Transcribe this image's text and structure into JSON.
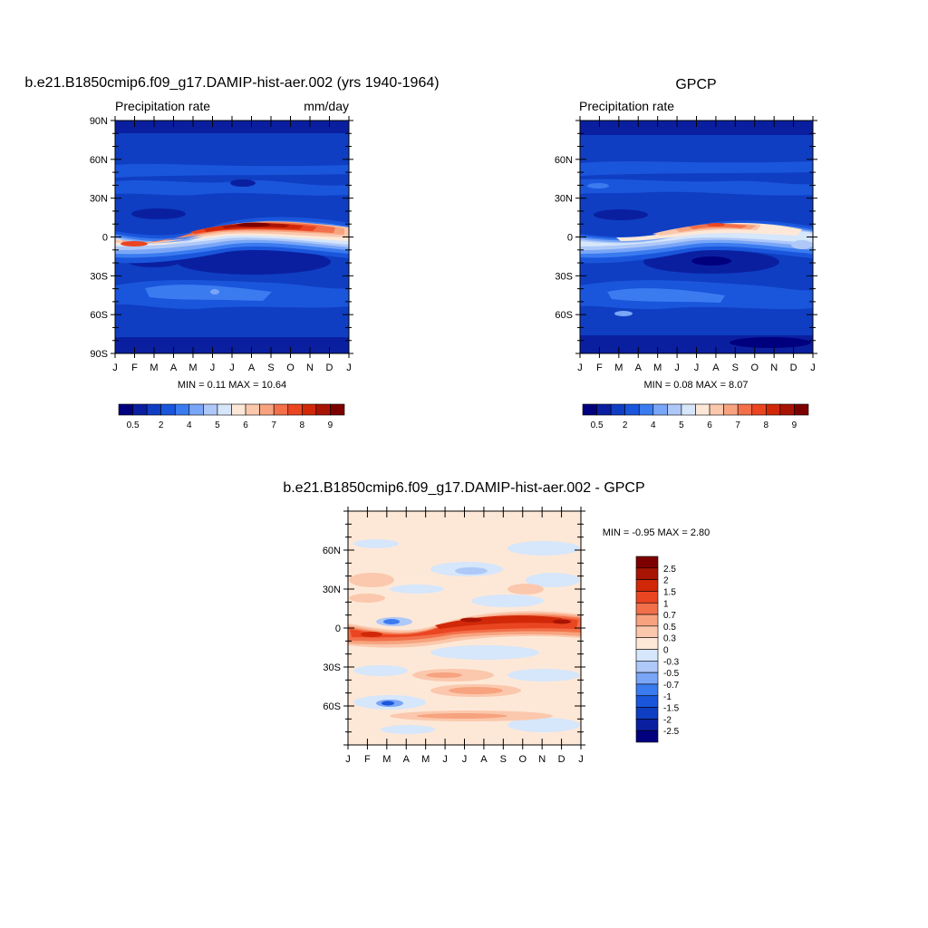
{
  "colormaps": {
    "precip": [
      "#00007f",
      "#0a1fa0",
      "#0f3ec2",
      "#1a56dc",
      "#3b7bf0",
      "#7aa6f7",
      "#aec8f8",
      "#d6e6fb",
      "#fde8d7",
      "#fbc8ad",
      "#f7a37f",
      "#f2704a",
      "#ea4521",
      "#d02808",
      "#a81404",
      "#7d0000"
    ],
    "diff": [
      "#00007f",
      "#0a1fa0",
      "#0f3ec2",
      "#1a56dc",
      "#3b7bf0",
      "#7aa6f7",
      "#aec8f8",
      "#d6e6fb",
      "#fde8d7",
      "#fbc8ad",
      "#f7a37f",
      "#f2704a",
      "#ea4521",
      "#d02808",
      "#a81404",
      "#7d0000"
    ]
  },
  "panels": [
    {
      "id": "model",
      "title": "b.e21.B1850cmip6.f09_g17.DAMIP-hist-aer.002 (yrs 1940-1964)",
      "left_label": "Precipitation rate",
      "right_label": "mm/day",
      "stats": "MIN =   0.11 MAX =  10.64",
      "months": [
        "J",
        "F",
        "M",
        "A",
        "M",
        "J",
        "J",
        "A",
        "S",
        "O",
        "N",
        "D",
        "J"
      ],
      "lat_labels": [
        "90N",
        "60N",
        "30N",
        "0",
        "30S",
        "60S",
        "90S"
      ],
      "colorbar_labels": [
        "0.5",
        "2",
        "4",
        "5",
        "6",
        "7",
        "8",
        "9"
      ],
      "chart_data": {
        "type": "heatmap",
        "xlabel": "",
        "ylabel": "",
        "x_range": [
          "Jan",
          "Jan"
        ],
        "y_range": [
          -90,
          90
        ],
        "min": 0.11,
        "max": 10.64,
        "units": "mm/day",
        "description_levels": [
          0.5,
          1,
          2,
          3,
          4,
          4.5,
          5,
          5.5,
          6,
          6.5,
          7,
          7.5,
          8,
          8.5,
          9
        ]
      }
    },
    {
      "id": "obs",
      "title": "GPCP",
      "left_label": "Precipitation rate",
      "right_label": "",
      "stats": "MIN =   0.08 MAX =   8.07",
      "months": [
        "J",
        "F",
        "M",
        "A",
        "M",
        "J",
        "J",
        "A",
        "S",
        "O",
        "N",
        "D",
        "J"
      ],
      "lat_labels": [
        "60N",
        "30N",
        "0",
        "30S",
        "60S"
      ],
      "colorbar_labels": [
        "0.5",
        "2",
        "4",
        "5",
        "6",
        "7",
        "8",
        "9"
      ],
      "chart_data": {
        "type": "heatmap",
        "xlabel": "",
        "ylabel": "",
        "y_range": [
          -90,
          90
        ],
        "min": 0.08,
        "max": 8.07
      }
    },
    {
      "id": "diff",
      "title": "b.e21.B1850cmip6.f09_g17.DAMIP-hist-aer.002 - GPCP",
      "stats": "MIN =  -0.95 MAX =   2.80",
      "months": [
        "J",
        "F",
        "M",
        "A",
        "M",
        "J",
        "J",
        "A",
        "S",
        "O",
        "N",
        "D",
        "J"
      ],
      "lat_labels": [
        "60N",
        "30N",
        "0",
        "30S",
        "60S"
      ],
      "colorbar_labels": [
        "2.5",
        "2",
        "1.5",
        "1",
        "0.7",
        "0.5",
        "0.3",
        "0",
        "-0.3",
        "-0.5",
        "-0.7",
        "-1",
        "-1.5",
        "-2",
        "-2.5"
      ],
      "chart_data": {
        "type": "heatmap",
        "y_range": [
          -90,
          90
        ],
        "min": -0.95,
        "max": 2.8,
        "levels": [
          -2.5,
          -2,
          -1.5,
          -1,
          -0.7,
          -0.5,
          -0.3,
          0,
          0.3,
          0.5,
          0.7,
          1,
          1.5,
          2,
          2.5
        ]
      }
    }
  ]
}
